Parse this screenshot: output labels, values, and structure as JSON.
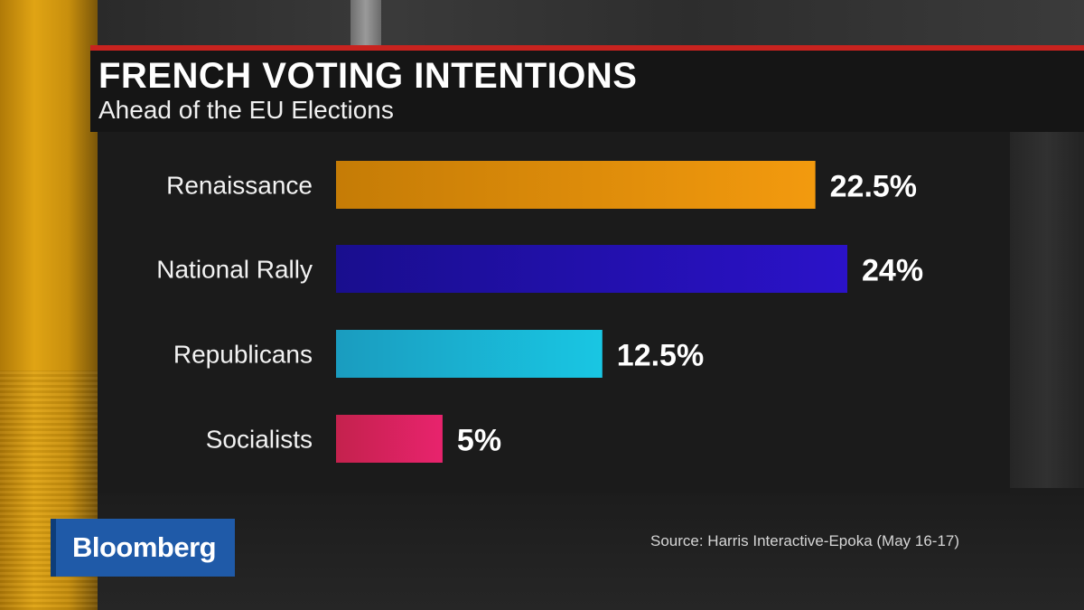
{
  "header": {
    "title": "FRENCH VOTING INTENTIONS",
    "subtitle": "Ahead of the EU Elections"
  },
  "branding": {
    "logo_text": "Bloomberg"
  },
  "source": "Source: Harris Interactive-Epoka (May 16-17)",
  "colors": {
    "accent_rule": "#c8231f",
    "logo_bg": "#1f5aa8"
  },
  "chart_data": {
    "type": "bar",
    "orientation": "horizontal",
    "title": "FRENCH VOTING INTENTIONS",
    "subtitle": "Ahead of the EU Elections",
    "categories": [
      "Renaissance",
      "National Rally",
      "Republicans",
      "Socialists"
    ],
    "values": [
      22.5,
      24,
      12.5,
      5
    ],
    "value_labels": [
      "22.5%",
      "24%",
      "12.5%",
      "5%"
    ],
    "bar_colors": [
      [
        "#c57c06",
        "#f39a0e"
      ],
      [
        "#190e8e",
        "#2b12c9"
      ],
      [
        "#1a9cbf",
        "#19c6e3"
      ],
      [
        "#c4224d",
        "#e8236d"
      ]
    ],
    "xlim": [
      0,
      24
    ],
    "grid": false,
    "legend": "none"
  }
}
